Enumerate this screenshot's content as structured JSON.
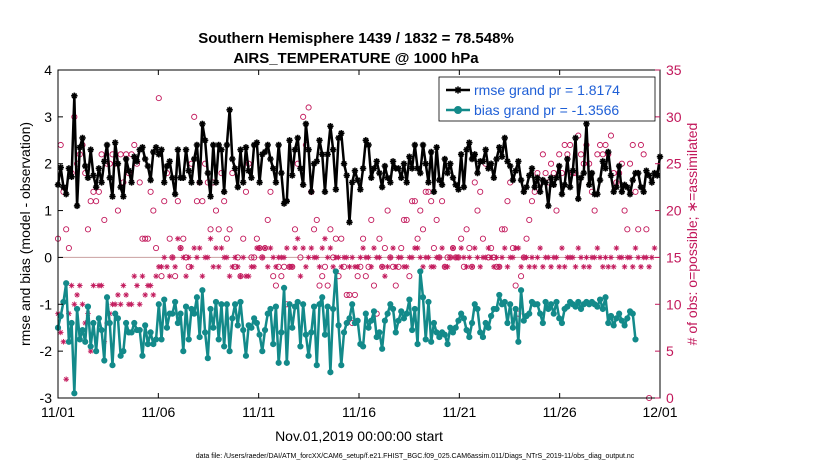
{
  "chart_data": {
    "type": "line",
    "title": "Southern Hemisphere 1439 / 1832 = 78.548%",
    "subtitle": "AIRS_TEMPERATURE @ 1000 hPa",
    "xlabel": "Nov.01,2019 00:00:00 start",
    "ylabel": "rmse and bias (model - observation)",
    "ylabel_right": "# of obs: o=possible; ∗=assimilated",
    "x_tick_labels": [
      "11/01",
      "11/06",
      "11/11",
      "11/16",
      "11/21",
      "11/26",
      "12/01"
    ],
    "x_ticks": [
      0,
      5,
      10,
      15,
      20,
      25,
      30
    ],
    "y_tick_labels": [
      "-3",
      "-2",
      "-1",
      "0",
      "1",
      "2",
      "3",
      "4"
    ],
    "y_ticks": [
      -3,
      -2,
      -1,
      0,
      1,
      2,
      3,
      4
    ],
    "y2_tick_labels": [
      "0",
      "5",
      "10",
      "15",
      "20",
      "25",
      "30",
      "35"
    ],
    "y2_ticks": [
      0,
      5,
      10,
      15,
      20,
      25,
      30,
      35
    ],
    "xlim": [
      0,
      30
    ],
    "ylim": [
      -3,
      4
    ],
    "y2lim": [
      0,
      35
    ],
    "legend_position": "top-right",
    "footnote": "data file: /Users/raeder/DAI/ATM_forcXX/CAM6_setup/f.e21.FHIST_BGC.f09_025.CAM6assim.011/Diags_NTrS_2019-11/obs_diag_output.nc",
    "series": [
      {
        "name": "rmse grand pr = 1.8174",
        "color": "#000000",
        "marker": "asterisk",
        "axis": "left",
        "values": [
          1.55,
          1.92,
          1.5,
          1.35,
          1.9,
          1.72,
          3.45,
          1.1,
          2.35,
          2.55,
          1.95,
          1.7,
          2.3,
          1.75,
          1.5,
          1.9,
          1.6,
          2.05,
          2.4,
          1.7,
          1.3,
          2.45,
          2.0,
          1.5,
          1.3,
          2.1,
          1.85,
          1.6,
          2.15,
          2.05,
          2.3,
          2.35,
          2.1,
          1.95,
          1.65,
          2.25,
          2.35,
          2.2,
          2.3,
          1.6,
          1.95,
          2.05,
          1.7,
          1.35,
          2.3,
          1.7,
          1.7,
          2.3,
          1.85,
          1.6,
          2.1,
          2.4,
          1.6,
          2.85,
          2.5,
          1.8,
          1.3,
          2.4,
          1.6,
          2.4,
          2.3,
          1.4,
          2.4,
          3.15,
          2.1,
          1.9,
          1.5,
          2.3,
          1.6,
          2.35,
          1.85,
          1.7,
          2.4,
          2.45,
          1.6,
          2.2,
          2.25,
          2.4,
          2.1,
          1.9,
          1.6,
          2.4,
          1.8,
          1.15,
          1.2,
          2.5,
          1.75,
          2.3,
          2.55,
          1.9,
          1.55,
          2.85,
          2.3,
          1.4,
          2.0,
          2.05,
          2.5,
          2.2,
          1.4,
          2.2,
          2.8,
          2.3,
          1.45,
          2.55,
          2.65,
          2.0,
          1.75,
          0.75,
          1.6,
          1.85,
          1.65,
          1.45,
          1.9,
          2.5,
          2.4,
          1.7,
          1.9,
          2.05,
          1.8,
          1.5,
          1.95,
          1.7,
          1.6,
          2.05,
          1.9,
          1.9,
          1.7,
          2.0,
          1.6,
          2.15,
          1.9,
          2.4,
          1.9,
          1.8,
          2.4,
          2.0,
          1.6,
          2.25,
          1.4,
          2.35,
          1.65,
          1.55,
          2.1,
          1.8,
          2.0,
          1.7,
          1.55,
          1.45,
          2.2,
          1.5,
          2.3,
          2.45,
          2.1,
          2.2,
          1.8,
          2.05,
          2.05,
          2.3,
          1.9,
          2.0,
          1.7,
          2.1,
          2.35,
          2.15,
          2.55,
          2.05,
          1.95,
          1.65,
          1.85,
          2.05,
          1.65,
          1.4,
          1.5,
          1.75,
          1.9,
          1.5,
          1.7,
          1.4,
          1.65,
          1.6,
          1.1,
          1.7,
          1.55,
          1.7,
          1.95,
          1.35,
          1.55,
          2.1,
          1.5,
          1.85,
          2.55,
          1.25,
          1.7,
          1.8,
          2.85,
          1.55,
          1.8,
          1.35,
          1.35,
          1.65,
          2.05,
          1.9,
          2.25,
          1.75,
          1.4,
          1.5,
          1.95,
          1.4,
          1.55,
          1.5,
          1.35,
          1.65,
          1.8,
          1.8,
          1.5,
          1.4,
          1.85,
          1.75,
          1.6,
          1.8,
          1.75,
          2.15
        ]
      },
      {
        "name": "bias grand pr = -1.3566",
        "color": "#138a8a",
        "marker": "circle",
        "axis": "left",
        "values": [
          -1.5,
          -1.25,
          -0.95,
          -0.55,
          -1.8,
          -1.4,
          -2.9,
          -1.1,
          -1.75,
          -1.55,
          -1.8,
          -1.05,
          -1.9,
          -1.4,
          -2.0,
          -1.3,
          -1.55,
          -2.2,
          -0.85,
          -1.4,
          -2.3,
          -1.2,
          -1.3,
          -2.1,
          -2.0,
          -1.4,
          -1.6,
          -1.6,
          -1.4,
          -1.55,
          -1.55,
          -2.1,
          -1.45,
          -1.85,
          -1.6,
          -1.85,
          -1.75,
          -1.0,
          -1.75,
          -0.9,
          -1.5,
          -1.2,
          -1.2,
          -0.95,
          -1.4,
          -1.2,
          -2.0,
          -1.05,
          -1.75,
          -1.1,
          -1.2,
          -0.85,
          -1.7,
          -0.7,
          -1.6,
          -2.15,
          -1.1,
          -1.5,
          -0.95,
          -1.75,
          -1.0,
          -1.9,
          -1.0,
          -2.0,
          -1.3,
          -1.0,
          -1.45,
          -0.95,
          -1.55,
          -2.1,
          -1.45,
          -1.5,
          -1.3,
          -1.4,
          -1.65,
          -2.0,
          -1.55,
          -1.2,
          -1.1,
          -1.85,
          -1.05,
          -2.25,
          -1.6,
          -0.65,
          -2.25,
          -1.0,
          -1.5,
          -1.05,
          -0.95,
          -1.9,
          -1.0,
          -1.65,
          -2.1,
          -1.6,
          -1.05,
          -2.3,
          -1.0,
          -0.85,
          -1.65,
          -1.05,
          -2.45,
          -1.1,
          -0.3,
          -1.45,
          -2.3,
          -1.6,
          -1.4,
          -1.3,
          -1.0,
          -1.4,
          -1.35,
          -1.85,
          -1.9,
          -1.2,
          -1.5,
          -1.35,
          -1.15,
          -1.7,
          -1.6,
          -1.95,
          -1.35,
          -1.2,
          -1.0,
          -1.1,
          -1.6,
          -1.35,
          -1.15,
          -1.3,
          -1.2,
          -0.9,
          -1.55,
          -1.1,
          -1.85,
          -0.3,
          -0.85,
          -1.75,
          -0.95,
          -1.8,
          -1.4,
          -1.6,
          -1.7,
          -1.6,
          -1.65,
          -1.85,
          -1.5,
          -1.6,
          -1.5,
          -1.35,
          -1.2,
          -1.3,
          -1.55,
          -1.7,
          -1.4,
          -1.0,
          -1.1,
          -1.6,
          -1.7,
          -1.4,
          -1.5,
          -1.25,
          -1.1,
          -1.1,
          -0.8,
          -1.0,
          -0.95,
          -1.4,
          -1.0,
          -1.5,
          -1.1,
          -1.8,
          -0.7,
          -1.35,
          -1.25,
          -1.2,
          -0.95,
          -1.0,
          -1.0,
          -1.2,
          -1.4,
          -0.95,
          -1.1,
          -1.0,
          -1.2,
          -0.95,
          -1.3,
          -1.4,
          -1.1,
          -1.05,
          -0.95,
          -1.0,
          -1.05,
          -0.95,
          -1.1,
          -1.0,
          -0.95,
          -1.0,
          -0.95,
          -1.0,
          -1.05,
          -0.9,
          -1.1,
          -0.85,
          -1.4,
          -1.25,
          -1.45,
          -1.3,
          -1.2,
          -1.35,
          -1.45,
          -1.3,
          -1.15,
          -1.2,
          -1.75
        ]
      }
    ],
    "obs_counts": {
      "possible": [
        17,
        27,
        22,
        18,
        16,
        24,
        30,
        25,
        26,
        27,
        24,
        18,
        21,
        22,
        21,
        22,
        26,
        19,
        25,
        25,
        26,
        25,
        20,
        26,
        23,
        26,
        24,
        26,
        27,
        25,
        23,
        17,
        17,
        17,
        22,
        20,
        16,
        32,
        13,
        21,
        24,
        17,
        15,
        13,
        21,
        16,
        17,
        15,
        14,
        25,
        30,
        21,
        23,
        21,
        25,
        23,
        18,
        23,
        20,
        18,
        24,
        21,
        17,
        18,
        24,
        14,
        15,
        13,
        17,
        22,
        25,
        15,
        15,
        17,
        16,
        15,
        16,
        19,
        22,
        13,
        12,
        14,
        13,
        14,
        10,
        14,
        14,
        18,
        25,
        15,
        30,
        27,
        31,
        22,
        18,
        19,
        12,
        13,
        14,
        12,
        18,
        15,
        17,
        13,
        17,
        14,
        11,
        11,
        8,
        11,
        13,
        14,
        17,
        13,
        14,
        19,
        12,
        9,
        17,
        14,
        16,
        20,
        15,
        14,
        12,
        14,
        16,
        19,
        19,
        13,
        21,
        21,
        17,
        20,
        18,
        22,
        22,
        21,
        16,
        19,
        15,
        21,
        14,
        15,
        15,
        16,
        15,
        15,
        17,
        14,
        18,
        16,
        14,
        23,
        20,
        22,
        17,
        25,
        15,
        16,
        15,
        14,
        14,
        18,
        18,
        21,
        23,
        16,
        12,
        9,
        13,
        15,
        17,
        19,
        21,
        22,
        24,
        23,
        26,
        24,
        23,
        25,
        24,
        20,
        26,
        24,
        27,
        26,
        27,
        24,
        24,
        28,
        26,
        25,
        27,
        25,
        22,
        20,
        26,
        27,
        26,
        27,
        26,
        28,
        24,
        23,
        24,
        25,
        20,
        18,
        25,
        27,
        22,
        18,
        27,
        26,
        18,
        0
      ],
      "assimilated": [
        9,
        7,
        6,
        2,
        9,
        12,
        10,
        11,
        12,
        10,
        8,
        9,
        5,
        12,
        5,
        12,
        12,
        6,
        8,
        9,
        10,
        10,
        11,
        10,
        12,
        11,
        10,
        10,
        13,
        12,
        10,
        13,
        11,
        12,
        12,
        11,
        13,
        14,
        14,
        15,
        14,
        13,
        15,
        14,
        17,
        16,
        15,
        13,
        15,
        14,
        16,
        15,
        16,
        13,
        15,
        15,
        17,
        14,
        16,
        14,
        16,
        15,
        15,
        13,
        14,
        15,
        14,
        13,
        15,
        13,
        13,
        14,
        14,
        16,
        16,
        15,
        16,
        14,
        16,
        15,
        14,
        15,
        15,
        15,
        16,
        14,
        14,
        16,
        17,
        13,
        16,
        14,
        15,
        16,
        15,
        15,
        14,
        16,
        17,
        15,
        16,
        14,
        15,
        15,
        14,
        15,
        15,
        14,
        15,
        14,
        14,
        15,
        16,
        15,
        15,
        14,
        16,
        15,
        15,
        14,
        13,
        14,
        15,
        16,
        14,
        15,
        15,
        14,
        14,
        15,
        15,
        16,
        16,
        15,
        14,
        15,
        15,
        14,
        14,
        15,
        15,
        16,
        14,
        14,
        15,
        16,
        15,
        15,
        16,
        15,
        14,
        15,
        14,
        16,
        15,
        14,
        15,
        15,
        16,
        15,
        14,
        15,
        14,
        15,
        16,
        14,
        15,
        15,
        16,
        16,
        14,
        15,
        15,
        14,
        15,
        14,
        15,
        16,
        14,
        15,
        15,
        14,
        15,
        15,
        14,
        16,
        14,
        15,
        15,
        15,
        14,
        16,
        15,
        14,
        15,
        14,
        15,
        15,
        16,
        15,
        14,
        15,
        14,
        15,
        14,
        16,
        15,
        15,
        14,
        15,
        15,
        14,
        16,
        15,
        14,
        15,
        15,
        14,
        15,
        16
      ]
    }
  }
}
